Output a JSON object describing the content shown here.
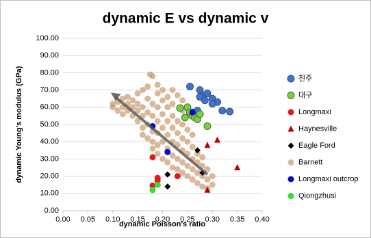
{
  "chart_data": {
    "type": "scatter",
    "title": "dynamic E vs dynamic v",
    "x_label": "dynamic Poisson's ratio",
    "y_label": "dynamic Young's modulus (GPa)",
    "xlim": [
      0,
      0.4
    ],
    "ylim": [
      0,
      100
    ],
    "grid": true,
    "legend": "right",
    "xticks": [
      {
        "value": 0,
        "label": "0.00"
      },
      {
        "value": 0.05,
        "label": "0.05"
      },
      {
        "value": 0.1,
        "label": "0.10"
      },
      {
        "value": 0.15,
        "label": "0.15"
      },
      {
        "value": 0.2,
        "label": "0.20"
      },
      {
        "value": 0.25,
        "label": "0.25"
      },
      {
        "value": 0.3,
        "label": "0.30"
      },
      {
        "value": 0.35,
        "label": "0.35"
      },
      {
        "value": 0.4,
        "label": "0.40"
      }
    ],
    "yticks": [
      {
        "value": 0,
        "label": "0.00"
      },
      {
        "value": 10,
        "label": "10.00"
      },
      {
        "value": 20,
        "label": "20.00"
      },
      {
        "value": 30,
        "label": "30.00"
      },
      {
        "value": 40,
        "label": "40.00"
      },
      {
        "value": 50,
        "label": "50.00"
      },
      {
        "value": 60,
        "label": "60.00"
      },
      {
        "value": 70,
        "label": "70.00"
      },
      {
        "value": 80,
        "label": "80.00"
      },
      {
        "value": 90,
        "label": "90.00"
      },
      {
        "value": 100,
        "label": "100.00"
      }
    ],
    "series": [
      {
        "name": "진주",
        "color": "#4472c4",
        "edgecolor": "#2f528f",
        "marker": "circle",
        "x": [
          0.255,
          0.275,
          0.28,
          0.275,
          0.285,
          0.29,
          0.3,
          0.31,
          0.3,
          0.32,
          0.335,
          0.26,
          0.265,
          0.27
        ],
        "values": [
          72,
          70,
          67,
          66,
          64,
          68,
          65,
          63,
          62,
          58,
          57.5,
          57,
          56,
          58
        ]
      },
      {
        "name": "대구",
        "color": "#7ccb4f",
        "edgecolor": "#3d7a22",
        "marker": "circle",
        "x": [
          0.235,
          0.25,
          0.255,
          0.26,
          0.265,
          0.27,
          0.275,
          0.29,
          0.245
        ],
        "values": [
          59.5,
          60,
          57,
          55,
          54,
          53,
          56,
          49,
          54
        ]
      },
      {
        "name": "Longmaxi",
        "color": "#e31a1c",
        "marker": "circle",
        "x": [
          0.18,
          0.19,
          0.19,
          0.18,
          0.23
        ],
        "values": [
          31,
          19,
          17.5,
          14.5,
          20
        ]
      },
      {
        "name": "Haynesville",
        "color": "#c00000",
        "marker": "triangle",
        "x": [
          0.29,
          0.31,
          0.35,
          0.29
        ],
        "values": [
          38,
          41,
          25,
          12
        ]
      },
      {
        "name": "Eagle Ford",
        "color": "#000000",
        "marker": "diamond",
        "x": [
          0.27,
          0.21,
          0.21,
          0.28
        ],
        "values": [
          35,
          21,
          14,
          22
        ]
      },
      {
        "name": "Barnett",
        "color": "#c69466",
        "alpha": 0.65,
        "marker": "circle",
        "x": [
          0.1,
          0.1,
          0.11,
          0.11,
          0.12,
          0.12,
          0.12,
          0.13,
          0.13,
          0.13,
          0.14,
          0.14,
          0.14,
          0.15,
          0.15,
          0.15,
          0.15,
          0.16,
          0.16,
          0.16,
          0.16,
          0.16,
          0.17,
          0.17,
          0.17,
          0.17,
          0.17,
          0.175,
          0.18,
          0.18,
          0.18,
          0.18,
          0.18,
          0.18,
          0.19,
          0.19,
          0.19,
          0.19,
          0.19,
          0.19,
          0.19,
          0.2,
          0.2,
          0.2,
          0.2,
          0.2,
          0.2,
          0.21,
          0.21,
          0.21,
          0.21,
          0.21,
          0.21,
          0.22,
          0.22,
          0.22,
          0.22,
          0.22,
          0.22,
          0.23,
          0.23,
          0.23,
          0.23,
          0.23,
          0.24,
          0.24,
          0.24,
          0.24,
          0.24,
          0.24,
          0.25,
          0.25,
          0.25,
          0.25,
          0.25,
          0.26,
          0.26,
          0.26,
          0.26,
          0.26,
          0.27,
          0.27,
          0.27,
          0.27,
          0.28,
          0.28,
          0.28,
          0.28,
          0.29,
          0.29,
          0.29,
          0.3,
          0.3,
          0.22,
          0.23,
          0.24
        ],
        "values": [
          60,
          62,
          58,
          63,
          65,
          60,
          56,
          62,
          58,
          66,
          55,
          64,
          60,
          52,
          58,
          62,
          68,
          48,
          55,
          60,
          70,
          44,
          42,
          50,
          57,
          65,
          72,
          79,
          78,
          46,
          40,
          36,
          55,
          62,
          38,
          45,
          52,
          60,
          68,
          73,
          33,
          30,
          40,
          48,
          56,
          64,
          70,
          28,
          36,
          44,
          52,
          60,
          66,
          25,
          32,
          40,
          48,
          55,
          62,
          24,
          30,
          38,
          45,
          52,
          22,
          28,
          35,
          42,
          50,
          58,
          20,
          26,
          33,
          40,
          47,
          18,
          24,
          30,
          37,
          44,
          16,
          22,
          28,
          33,
          14,
          20,
          26,
          31,
          13,
          18,
          24,
          15,
          20,
          70,
          67,
          64
        ]
      },
      {
        "name": "Longmaxi outcrop",
        "color": "#0a0ac8",
        "marker": "circle",
        "x": [
          0.18,
          0.21,
          0.26
        ],
        "values": [
          49,
          34,
          57
        ]
      },
      {
        "name": "Qiongzhusi",
        "color": "#33dd33",
        "marker": "circle",
        "x": [
          0.18,
          0.19
        ],
        "values": [
          12,
          15
        ]
      }
    ]
  }
}
